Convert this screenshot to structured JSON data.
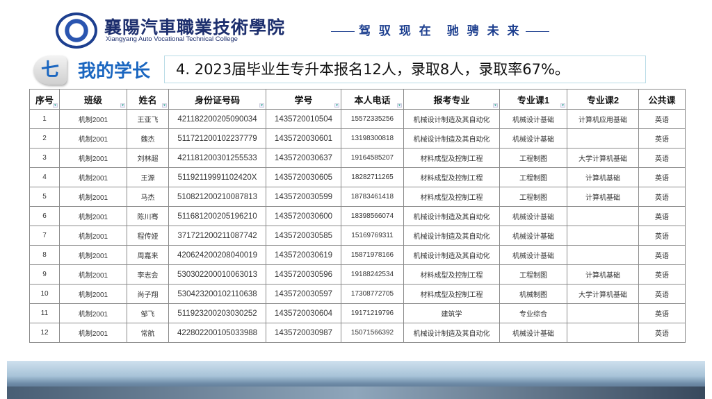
{
  "header": {
    "college_cn": "襄陽汽車職業技術學院",
    "college_en": "Xiangyang Auto Vocational Technical College",
    "slogan": "驾 驭 现 在　驰 骋 未 来"
  },
  "section": {
    "number": "七",
    "title": "我的学长",
    "headline": "4. 2023届毕业生专升本报名12人，录取8人，录取率67%。"
  },
  "table": {
    "columns": [
      "序号",
      "班级",
      "姓名",
      "身份证号码",
      "学号",
      "本人电话",
      "报考专业",
      "专业课1",
      "专业课2",
      "公共课"
    ],
    "rows": [
      [
        "1",
        "机制2001",
        "王亚飞",
        "421182200205090034",
        "1435720010504",
        "15572335256",
        "机械设计制造及其自动化",
        "机械设计基础",
        "计算机应用基础",
        "英语"
      ],
      [
        "2",
        "机制2001",
        "魏杰",
        "511721200102237779",
        "1435720030601",
        "13198300818",
        "机械设计制造及其自动化",
        "机械设计基础",
        "",
        "英语"
      ],
      [
        "3",
        "机制2001",
        "刘林超",
        "421181200301255533",
        "1435720030637",
        "19164585207",
        "材料成型及控制工程",
        "工程制图",
        "大学计算机基础",
        "英语"
      ],
      [
        "4",
        "机制2001",
        "王源",
        "51192119991102420X",
        "1435720030605",
        "18282711265",
        "材料成型及控制工程",
        "工程制图",
        "计算机基础",
        "英语"
      ],
      [
        "5",
        "机制2001",
        "马杰",
        "510821200210087813",
        "1435720030599",
        "18783461418",
        "材料成型及控制工程",
        "工程制图",
        "计算机基础",
        "英语"
      ],
      [
        "6",
        "机制2001",
        "陈川骞",
        "511681200205196210",
        "1435720030600",
        "18398566074",
        "机械设计制造及其自动化",
        "机械设计基础",
        "",
        "英语"
      ],
      [
        "7",
        "机制2001",
        "程传娅",
        "371721200211087742",
        "1435720030585",
        "15169769311",
        "机械设计制造及其自动化",
        "机械设计基础",
        "",
        "英语"
      ],
      [
        "8",
        "机制2001",
        "周嘉来",
        "420624200208040019",
        "1435720030619",
        "15871978166",
        "机械设计制造及其自动化",
        "机械设计基础",
        "",
        "英语"
      ],
      [
        "9",
        "机制2001",
        "李志会",
        "530302200010063013",
        "1435720030596",
        "19188242534",
        "材料成型及控制工程",
        "工程制图",
        "计算机基础",
        "英语"
      ],
      [
        "10",
        "机制2001",
        "尚子翔",
        "530423200102110638",
        "1435720030597",
        "17308772705",
        "材料成型及控制工程",
        "机械制图",
        "大学计算机基础",
        "英语"
      ],
      [
        "11",
        "机制2001",
        "邹飞",
        "511923200203030252",
        "1435720030604",
        "19171219796",
        "建筑学",
        "专业综合",
        "",
        "英语"
      ],
      [
        "12",
        "机制2001",
        "常航",
        "422802200105033988",
        "1435720030987",
        "15071566392",
        "机械设计制造及其自动化",
        "机械设计基础",
        "",
        "英语"
      ]
    ]
  }
}
